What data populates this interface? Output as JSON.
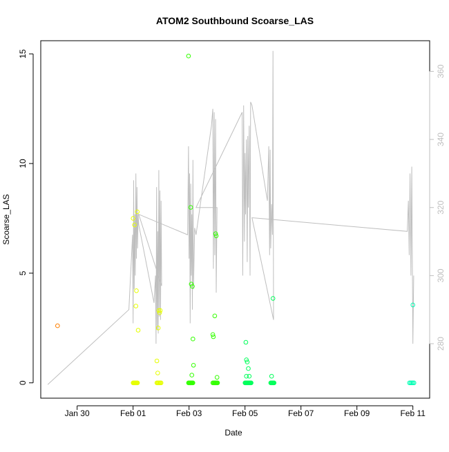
{
  "chart_data": {
    "type": "scatter",
    "title": "ATOM2 Southbound Scoarse_LAS",
    "xlabel": "Date",
    "ylabel": "Scoarse_LAS",
    "x_ticks": [
      "Jan 30",
      "Feb 01",
      "Feb 03",
      "Feb 05",
      "Feb 07",
      "Feb 09",
      "Feb 11"
    ],
    "x_tick_values": [
      1,
      3,
      5,
      7,
      9,
      11,
      13
    ],
    "x_range": [
      -0.3,
      13.6
    ],
    "y_ticks": [
      0,
      5,
      10,
      15
    ],
    "ylim": [
      -0.7,
      15.6
    ],
    "y2_ticks": [
      280,
      300,
      320,
      340,
      360
    ],
    "y2_range": [
      264,
      369
    ],
    "grid": false,
    "colors": {
      "orange": "#ff8000",
      "yellow": "#e6ff00",
      "lime": "#80ff00",
      "green": "#33ff00",
      "seagreen": "#00ff5a",
      "teal": "#00ffb3",
      "line": "#bebebe",
      "right_axis": "#bebebe"
    },
    "series": [
      {
        "color": "orange",
        "x": [
          0.3
        ],
        "y": [
          2.6
        ]
      },
      {
        "color": "yellow",
        "x": [
          3.0,
          3.02,
          3.04,
          3.06,
          3.08,
          3.1,
          3.12,
          3.14,
          3.16,
          3.0,
          3.05,
          3.1,
          3.12,
          3.15,
          3.18,
          3.85,
          3.87,
          3.9,
          3.92,
          3.95,
          3.97,
          3.85,
          3.88,
          3.9,
          3.92,
          3.95,
          3.97,
          4.0
        ],
        "y": [
          0,
          0,
          0,
          0,
          0,
          0,
          0,
          0,
          0,
          7.5,
          7.2,
          3.5,
          4.2,
          7.8,
          2.4,
          0,
          0,
          0,
          0,
          0,
          0,
          1.0,
          0.45,
          2.5,
          3.3,
          3.2,
          3.3,
          0
        ]
      },
      {
        "color": "green",
        "x": [
          4.98,
          5.0,
          5.02,
          5.04,
          5.06,
          5.08,
          5.1,
          5.12,
          5.14,
          4.98,
          5.06,
          5.08,
          5.12,
          5.14,
          5.16,
          5.1,
          5.05,
          5.85,
          5.87,
          5.9,
          5.92,
          5.94,
          5.96,
          5.98,
          6.0,
          6.02,
          5.85,
          5.87,
          5.92,
          6.0,
          5.95,
          5.97
        ],
        "y": [
          0,
          0,
          0,
          0,
          0,
          0,
          0,
          0,
          0,
          14.9,
          8.0,
          4.5,
          4.4,
          2.0,
          0.8,
          0.35,
          0.0,
          0,
          0,
          0,
          0,
          0,
          0,
          0,
          0,
          0,
          2.2,
          2.1,
          3.05,
          0.25,
          6.8,
          6.7
        ]
      },
      {
        "color": "seagreen",
        "x": [
          7.0,
          7.02,
          7.04,
          7.06,
          7.08,
          7.1,
          7.12,
          7.14,
          7.16,
          7.18,
          7.2,
          7.22,
          7.03,
          7.05,
          7.08,
          7.12,
          7.15,
          7.05,
          7.92,
          7.94,
          7.96,
          7.98,
          8.0,
          8.02,
          8.04,
          7.95,
          8.0
        ],
        "y": [
          0,
          0,
          0,
          0,
          0,
          0,
          0,
          0,
          0,
          0,
          0,
          0,
          1.85,
          1.05,
          0.95,
          0.65,
          0.3,
          0.3,
          0,
          0,
          0,
          0,
          0,
          0,
          0,
          0.3,
          3.85
        ]
      },
      {
        "color": "teal",
        "x": [
          12.88,
          12.92,
          12.96,
          13.0,
          13.04,
          13.0
        ],
        "y": [
          0,
          0,
          0,
          0,
          0,
          3.55
        ]
      }
    ],
    "line_series": {
      "axis": "right",
      "x": [
        -0.05,
        2.85,
        2.98,
        3.0,
        3.02,
        3.04,
        3.06,
        3.08,
        3.1,
        3.12,
        3.14,
        3.16,
        3.18,
        3.2,
        3.75,
        3.8,
        3.82,
        3.84,
        3.86,
        3.88,
        3.9,
        3.92,
        3.94,
        3.96,
        3.98,
        4.0,
        4.02,
        3.2,
        4.95,
        4.98,
        5.0,
        5.02,
        5.04,
        5.06,
        5.08,
        5.1,
        5.12,
        5.14,
        5.16,
        5.2,
        5.25,
        5.8,
        5.85,
        5.87,
        5.9,
        5.92,
        5.95,
        5.97,
        6.0,
        5.25,
        6.9,
        6.92,
        6.95,
        6.98,
        7.0,
        7.02,
        7.05,
        7.08,
        7.1,
        7.12,
        7.15,
        7.18,
        7.2,
        7.25,
        7.8,
        7.85,
        7.88,
        7.9,
        7.92,
        7.95,
        7.98,
        8.0,
        8.02,
        7.25,
        12.8,
        12.84,
        12.87,
        12.9,
        12.93,
        12.96,
        13.0,
        13.03
      ],
      "y": [
        268,
        290,
        312,
        286,
        328,
        296,
        318,
        300,
        330,
        305,
        326,
        308,
        318,
        315,
        292,
        300,
        280,
        326,
        284,
        313,
        283,
        331,
        288,
        325,
        287,
        322,
        297,
        318,
        312,
        338,
        305,
        330,
        286,
        327,
        300,
        318,
        290,
        334,
        296,
        314,
        312,
        344,
        349,
        302,
        348,
        306,
        346,
        295,
        320,
        320,
        348,
        300,
        350,
        310,
        336,
        318,
        340,
        304,
        341,
        320,
        344,
        300,
        351,
        350,
        322,
        338,
        306,
        337,
        308,
        321,
        312,
        366,
        287,
        317,
        313,
        322,
        306,
        330,
        300,
        332,
        280,
        300
      ]
    }
  }
}
